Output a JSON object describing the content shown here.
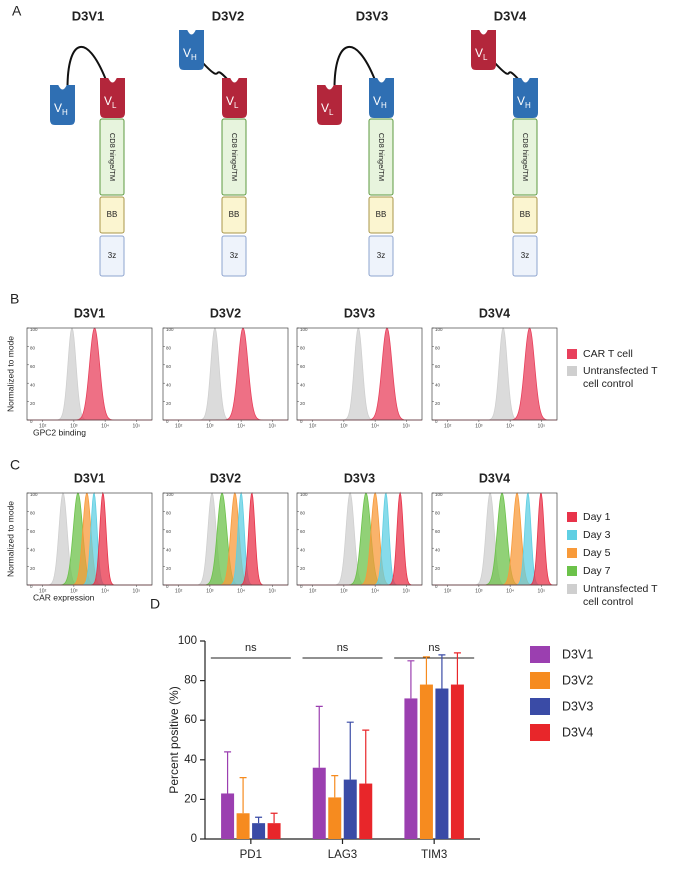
{
  "panel_labels": [
    "A",
    "B",
    "C",
    "D"
  ],
  "diagram": {
    "constructs": [
      {
        "title": "D3V1",
        "domains": [
          {
            "main": "V",
            "sub": "H"
          },
          {
            "main": "V",
            "sub": "L"
          }
        ]
      },
      {
        "title": "D3V2",
        "domains": [
          {
            "main": "V",
            "sub": "H"
          },
          {
            "main": "V",
            "sub": "L"
          }
        ]
      },
      {
        "title": "D3V3",
        "domains": [
          {
            "main": "V",
            "sub": "L"
          },
          {
            "main": "V",
            "sub": "H"
          }
        ]
      },
      {
        "title": "D3V4",
        "domains": [
          {
            "main": "V",
            "sub": "L"
          },
          {
            "main": "V",
            "sub": "H"
          }
        ]
      }
    ],
    "hinge": "CD8 hinge/TM",
    "costim": "BB",
    "signal": "3z"
  },
  "chart_data": [
    {
      "type": "density",
      "categories": [
        "D3V1",
        "D3V2",
        "D3V3",
        "D3V4"
      ],
      "xlabel": "GPC2 binding",
      "ylabel": "Normalized to mode",
      "xscale": "log",
      "xlim": [
        31.6,
        316228
      ],
      "xticks": [
        {
          "value": 100,
          "label": "10²"
        },
        {
          "value": 1000,
          "label": "10³"
        },
        {
          "value": 10000,
          "label": "10⁴"
        },
        {
          "value": 100000,
          "label": "10⁵"
        }
      ],
      "ylim": [
        0,
        100
      ],
      "yticks": [
        0,
        20,
        40,
        60,
        80,
        100
      ],
      "series": [
        {
          "name": "CAR T cell",
          "color": "#e8405c",
          "values": [
            4600,
            11500,
            24000,
            42000
          ],
          "spread": 0.16
        },
        {
          "name": "Untransfected T cell control",
          "color": "#cfcfcf",
          "values": [
            870,
            1450,
            2900,
            6000
          ],
          "spread": 0.13
        }
      ]
    },
    {
      "type": "density",
      "categories": [
        "D3V1",
        "D3V2",
        "D3V3",
        "D3V4"
      ],
      "xlabel": "CAR expression",
      "ylabel": "Normalized to mode",
      "xscale": "log",
      "xlim": [
        31.6,
        316228
      ],
      "xticks": [
        {
          "value": 100,
          "label": "10²"
        },
        {
          "value": 1000,
          "label": "10³"
        },
        {
          "value": 10000,
          "label": "10⁴"
        },
        {
          "value": 100000,
          "label": "10⁵"
        }
      ],
      "ylim": [
        0,
        100
      ],
      "yticks": [
        0,
        20,
        40,
        60,
        80,
        100
      ],
      "series": [
        {
          "name": "Day 1",
          "color": "#e8334a",
          "values": [
            8500,
            22000,
            63000,
            97000
          ],
          "spread": 0.1
        },
        {
          "name": "Day 3",
          "color": "#5fcfe3",
          "values": [
            4400,
            10000,
            22000,
            37000
          ],
          "spread": 0.1
        },
        {
          "name": "Day 5",
          "color": "#f89a3a",
          "values": [
            2600,
            6300,
            10000,
            16600
          ],
          "spread": 0.13
        },
        {
          "name": "Day 7",
          "color": "#6cc24a",
          "values": [
            1350,
            2450,
            5100,
            5500
          ],
          "spread": 0.15
        },
        {
          "name": "Untransfected T cell control",
          "color": "#cfcfcf",
          "values": [
            450,
            1170,
            1580,
            2290
          ],
          "spread": 0.13
        }
      ]
    },
    {
      "type": "bar",
      "categories": [
        "PD1",
        "LAG3",
        "TIM3"
      ],
      "ylabel": "Percent positive (%)",
      "ylim": [
        0,
        100
      ],
      "yticks": [
        0,
        20,
        40,
        60,
        80,
        100
      ],
      "annotations": [
        "ns",
        "ns",
        "ns"
      ],
      "series": [
        {
          "name": "D3V1",
          "color": "#9b3fb0",
          "values": [
            23,
            36,
            71
          ],
          "errors": [
            21,
            31,
            19
          ]
        },
        {
          "name": "D3V2",
          "color": "#f68b1f",
          "values": [
            13,
            21,
            78
          ],
          "errors": [
            18,
            11,
            14
          ]
        },
        {
          "name": "D3V3",
          "color": "#3a4ba6",
          "values": [
            8,
            30,
            76
          ],
          "errors": [
            3,
            29,
            17
          ]
        },
        {
          "name": "D3V4",
          "color": "#e8262a",
          "values": [
            8,
            28,
            78
          ],
          "errors": [
            5,
            27,
            16
          ]
        }
      ]
    }
  ]
}
